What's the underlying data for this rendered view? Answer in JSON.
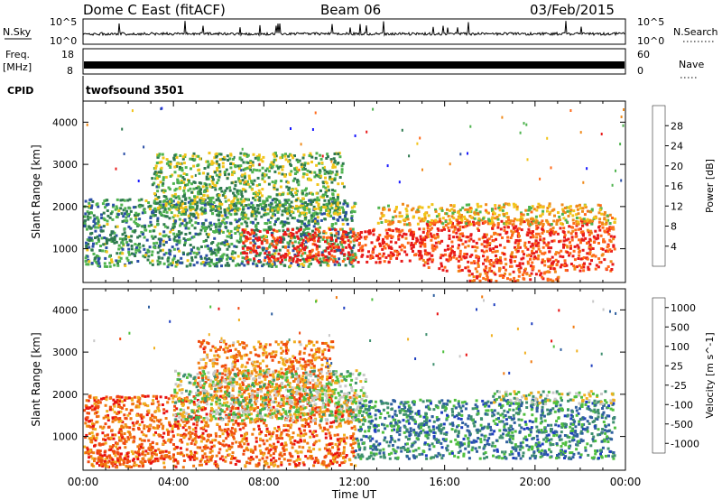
{
  "header": {
    "station": "Dome C East (fitACF)",
    "beam": "Beam 06",
    "date": "03/Feb/2015"
  },
  "strip_panels": {
    "nsky_label": "N.Sky",
    "nsky_tick_top": "10^5",
    "nsky_tick_bottom": "10^0",
    "nsearch_label": "N.Search",
    "freq_label_1": "Freq.",
    "freq_label_2": "[MHz]",
    "freq_left_top": "18",
    "freq_left_bottom": "8",
    "nave_label": "Nave",
    "nave_right_top": "60",
    "nave_right_bottom": "0",
    "cpid_label": "CPID",
    "cpid_value": "twofsound 3501"
  },
  "chart_data": [
    {
      "type": "heatmap",
      "title": "",
      "xlabel": "",
      "ylabel": "Slant Range [km]",
      "xlim": [
        0,
        24
      ],
      "ylim": [
        200,
        4500
      ],
      "x_ticks": [],
      "y_ticks": [
        "1000",
        "2000",
        "3000",
        "4000"
      ],
      "colorbar": {
        "label": "Power [dB]",
        "ticks": [
          "4",
          "8",
          "12",
          "16",
          "20",
          "24",
          "28"
        ],
        "colors": [
          "#1a1aff",
          "#2b4fa6",
          "#2f7a4f",
          "#4fb34f",
          "#f2c41a",
          "#f08a1a",
          "#ff6a1a",
          "#e81a1a"
        ]
      },
      "bands": [
        {
          "t0": 0.0,
          "t1": 12.0,
          "r0": 600,
          "r1": 2200,
          "level": 0.35
        },
        {
          "t0": 3.0,
          "t1": 11.5,
          "r0": 1800,
          "r1": 3300,
          "level": 0.45
        },
        {
          "t0": 7.0,
          "t1": 15.0,
          "r0": 700,
          "r1": 1500,
          "level": 0.92
        },
        {
          "t0": 15.0,
          "t1": 23.5,
          "r0": 500,
          "r1": 1700,
          "level": 0.88
        },
        {
          "t0": 13.0,
          "t1": 23.5,
          "r0": 1600,
          "r1": 2100,
          "level": 0.6
        },
        {
          "t0": 17.0,
          "t1": 21.0,
          "r0": 250,
          "r1": 500,
          "level": 0.8
        }
      ]
    },
    {
      "type": "heatmap",
      "title": "",
      "xlabel": "Time UT",
      "ylabel": "Slant Range [km]",
      "xlim": [
        0,
        24
      ],
      "ylim": [
        200,
        4500
      ],
      "x_ticks": [
        "00:00",
        "04:00",
        "08:00",
        "12:00",
        "16:00",
        "20:00",
        "00:00"
      ],
      "y_ticks": [
        "1000",
        "2000",
        "3000",
        "4000"
      ],
      "colorbar": {
        "label": "Velocity [m s^-1]",
        "ticks": [
          "1000",
          "500",
          "100",
          "25",
          "-25",
          "-100",
          "-500",
          "-1000"
        ],
        "colors": [
          "#1f3fbf",
          "#2f5f9f",
          "#3f8f6f",
          "#4fbf3f",
          "#c8c8c8",
          "#f0b020",
          "#f07a10",
          "#f04a10",
          "#e81010"
        ]
      },
      "bands": [
        {
          "t0": 0.0,
          "t1": 12.0,
          "r0": 300,
          "r1": 2000,
          "level": 0.78
        },
        {
          "t0": 5.0,
          "t1": 11.0,
          "r0": 1900,
          "r1": 3300,
          "level": 0.72
        },
        {
          "t0": 4.0,
          "t1": 12.5,
          "r0": 1400,
          "r1": 2600,
          "level": 0.45
        },
        {
          "t0": 12.0,
          "t1": 23.5,
          "r0": 500,
          "r1": 1900,
          "level": 0.25
        },
        {
          "t0": 18.0,
          "t1": 23.5,
          "r0": 1800,
          "r1": 2100,
          "level": 0.45
        },
        {
          "t0": 0.5,
          "t1": 3.0,
          "r0": 300,
          "r1": 700,
          "level": 0.82
        }
      ]
    }
  ]
}
